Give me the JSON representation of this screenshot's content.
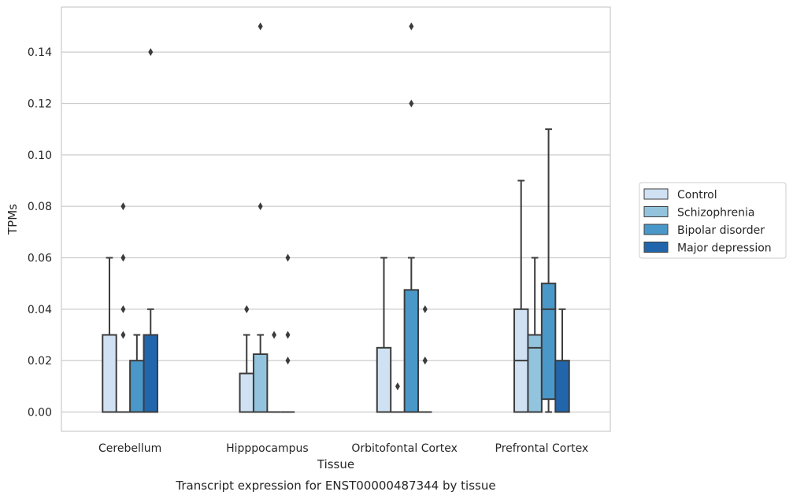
{
  "chart_data": {
    "type": "box",
    "title": "",
    "caption": "Transcript expression for ENST00000487344 by tissue",
    "xlabel": "Tissue",
    "ylabel": "TPMs",
    "ylim": [
      -0.0075,
      0.1575
    ],
    "yticks": [
      "0.00",
      "0.02",
      "0.04",
      "0.06",
      "0.08",
      "0.10",
      "0.12",
      "0.14"
    ],
    "grid": "horizontal",
    "legend_position": "right",
    "categories": [
      "Cerebellum",
      "Hipppocampus",
      "Orbitofontal Cortex",
      "Prefrontal Cortex"
    ],
    "series": [
      {
        "name": "Control",
        "color": "#cfe1f2",
        "boxes": [
          {
            "q1": 0,
            "median": 0,
            "q3": 0.03,
            "whisker_low": 0,
            "whisker_high": 0.06,
            "outliers": []
          },
          {
            "q1": 0,
            "median": 0,
            "q3": 0.015,
            "whisker_low": 0,
            "whisker_high": 0.03,
            "outliers": [
              0.04,
              0.04
            ]
          },
          {
            "q1": 0,
            "median": 0,
            "q3": 0.025,
            "whisker_low": 0,
            "whisker_high": 0.06,
            "outliers": []
          },
          {
            "q1": 0,
            "median": 0.02,
            "q3": 0.04,
            "whisker_low": 0,
            "whisker_high": 0.09,
            "outliers": []
          }
        ]
      },
      {
        "name": "Schizophrenia",
        "color": "#93c4de",
        "boxes": [
          {
            "q1": 0,
            "median": 0,
            "q3": 0,
            "whisker_low": 0,
            "whisker_high": 0,
            "outliers": [
              0.03,
              0.04,
              0.06,
              0.08
            ]
          },
          {
            "q1": 0,
            "median": 0,
            "q3": 0.0225,
            "whisker_low": 0,
            "whisker_high": 0.03,
            "outliers": [
              0.08,
              0.15
            ]
          },
          {
            "q1": 0,
            "median": 0,
            "q3": 0,
            "whisker_low": 0,
            "whisker_high": 0,
            "outliers": [
              0.01
            ]
          },
          {
            "q1": 0,
            "median": 0.025,
            "q3": 0.03,
            "whisker_low": 0,
            "whisker_high": 0.06,
            "outliers": []
          }
        ]
      },
      {
        "name": "Bipolar disorder",
        "color": "#4a98c9",
        "boxes": [
          {
            "q1": 0,
            "median": 0,
            "q3": 0.02,
            "whisker_low": 0,
            "whisker_high": 0.03,
            "outliers": []
          },
          {
            "q1": 0,
            "median": 0,
            "q3": 0,
            "whisker_low": 0,
            "whisker_high": 0,
            "outliers": [
              0.03
            ]
          },
          {
            "q1": 0,
            "median": 0,
            "q3": 0.0475,
            "whisker_low": 0,
            "whisker_high": 0.06,
            "outliers": [
              0.12,
              0.15
            ]
          },
          {
            "q1": 0.005,
            "median": 0.04,
            "q3": 0.05,
            "whisker_low": 0,
            "whisker_high": 0.11,
            "outliers": []
          }
        ]
      },
      {
        "name": "Major depression",
        "color": "#2166ac",
        "boxes": [
          {
            "q1": 0,
            "median": 0,
            "q3": 0.03,
            "whisker_low": 0,
            "whisker_high": 0.04,
            "outliers": [
              0.14
            ]
          },
          {
            "q1": 0,
            "median": 0,
            "q3": 0,
            "whisker_low": 0,
            "whisker_high": 0,
            "outliers": [
              0.02,
              0.03,
              0.06
            ]
          },
          {
            "q1": 0,
            "median": 0,
            "q3": 0,
            "whisker_low": 0,
            "whisker_high": 0,
            "outliers": [
              0.02,
              0.02,
              0.04
            ]
          },
          {
            "q1": 0,
            "median": 0,
            "q3": 0.02,
            "whisker_low": 0,
            "whisker_high": 0.04,
            "outliers": []
          }
        ]
      }
    ]
  }
}
